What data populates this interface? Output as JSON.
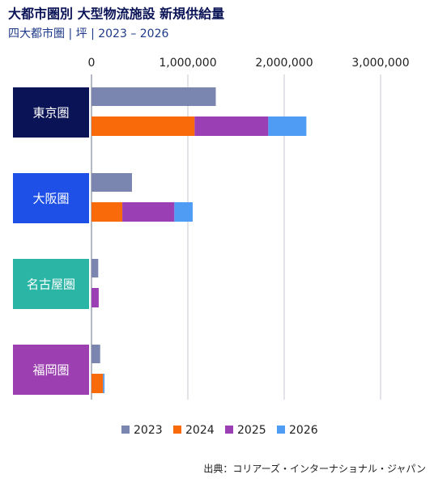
{
  "chart_data": {
    "type": "bar",
    "orientation": "horizontal",
    "title": "大都市圏別 大型物流施設 新規供給量",
    "subtitle": "四大都市圏 | 坪 | 2023 – 2026",
    "source": "出典：コリアーズ・インターナショナル・ジャパン",
    "categories": [
      "東京圏",
      "大阪圏",
      "名古屋圏",
      "福岡圏"
    ],
    "category_colors": [
      "#0a1356",
      "#1e50e8",
      "#2ab5a5",
      "#9c3fb0"
    ],
    "series": [
      {
        "name": "2023",
        "color": "#7b86b0",
        "values": [
          1290000,
          420000,
          70000,
          90000
        ]
      },
      {
        "name": "2024",
        "color": "#f96a0a",
        "values": [
          1070000,
          320000,
          0,
          120000
        ]
      },
      {
        "name": "2025",
        "color": "#9b3fb5",
        "values": [
          765000,
          540000,
          75000,
          0
        ]
      },
      {
        "name": "2026",
        "color": "#4f9cf5",
        "values": [
          395000,
          190000,
          0,
          15000
        ]
      }
    ],
    "xlim": [
      0,
      3000000
    ],
    "xticks": [
      0,
      {
        "value": 1000000,
        "label": "1,000,000"
      },
      {
        "value": 2000000,
        "label": "2,000,000"
      },
      {
        "value": 3000000,
        "label": "3,000,000"
      }
    ],
    "grid": true,
    "legend": "bottom"
  }
}
